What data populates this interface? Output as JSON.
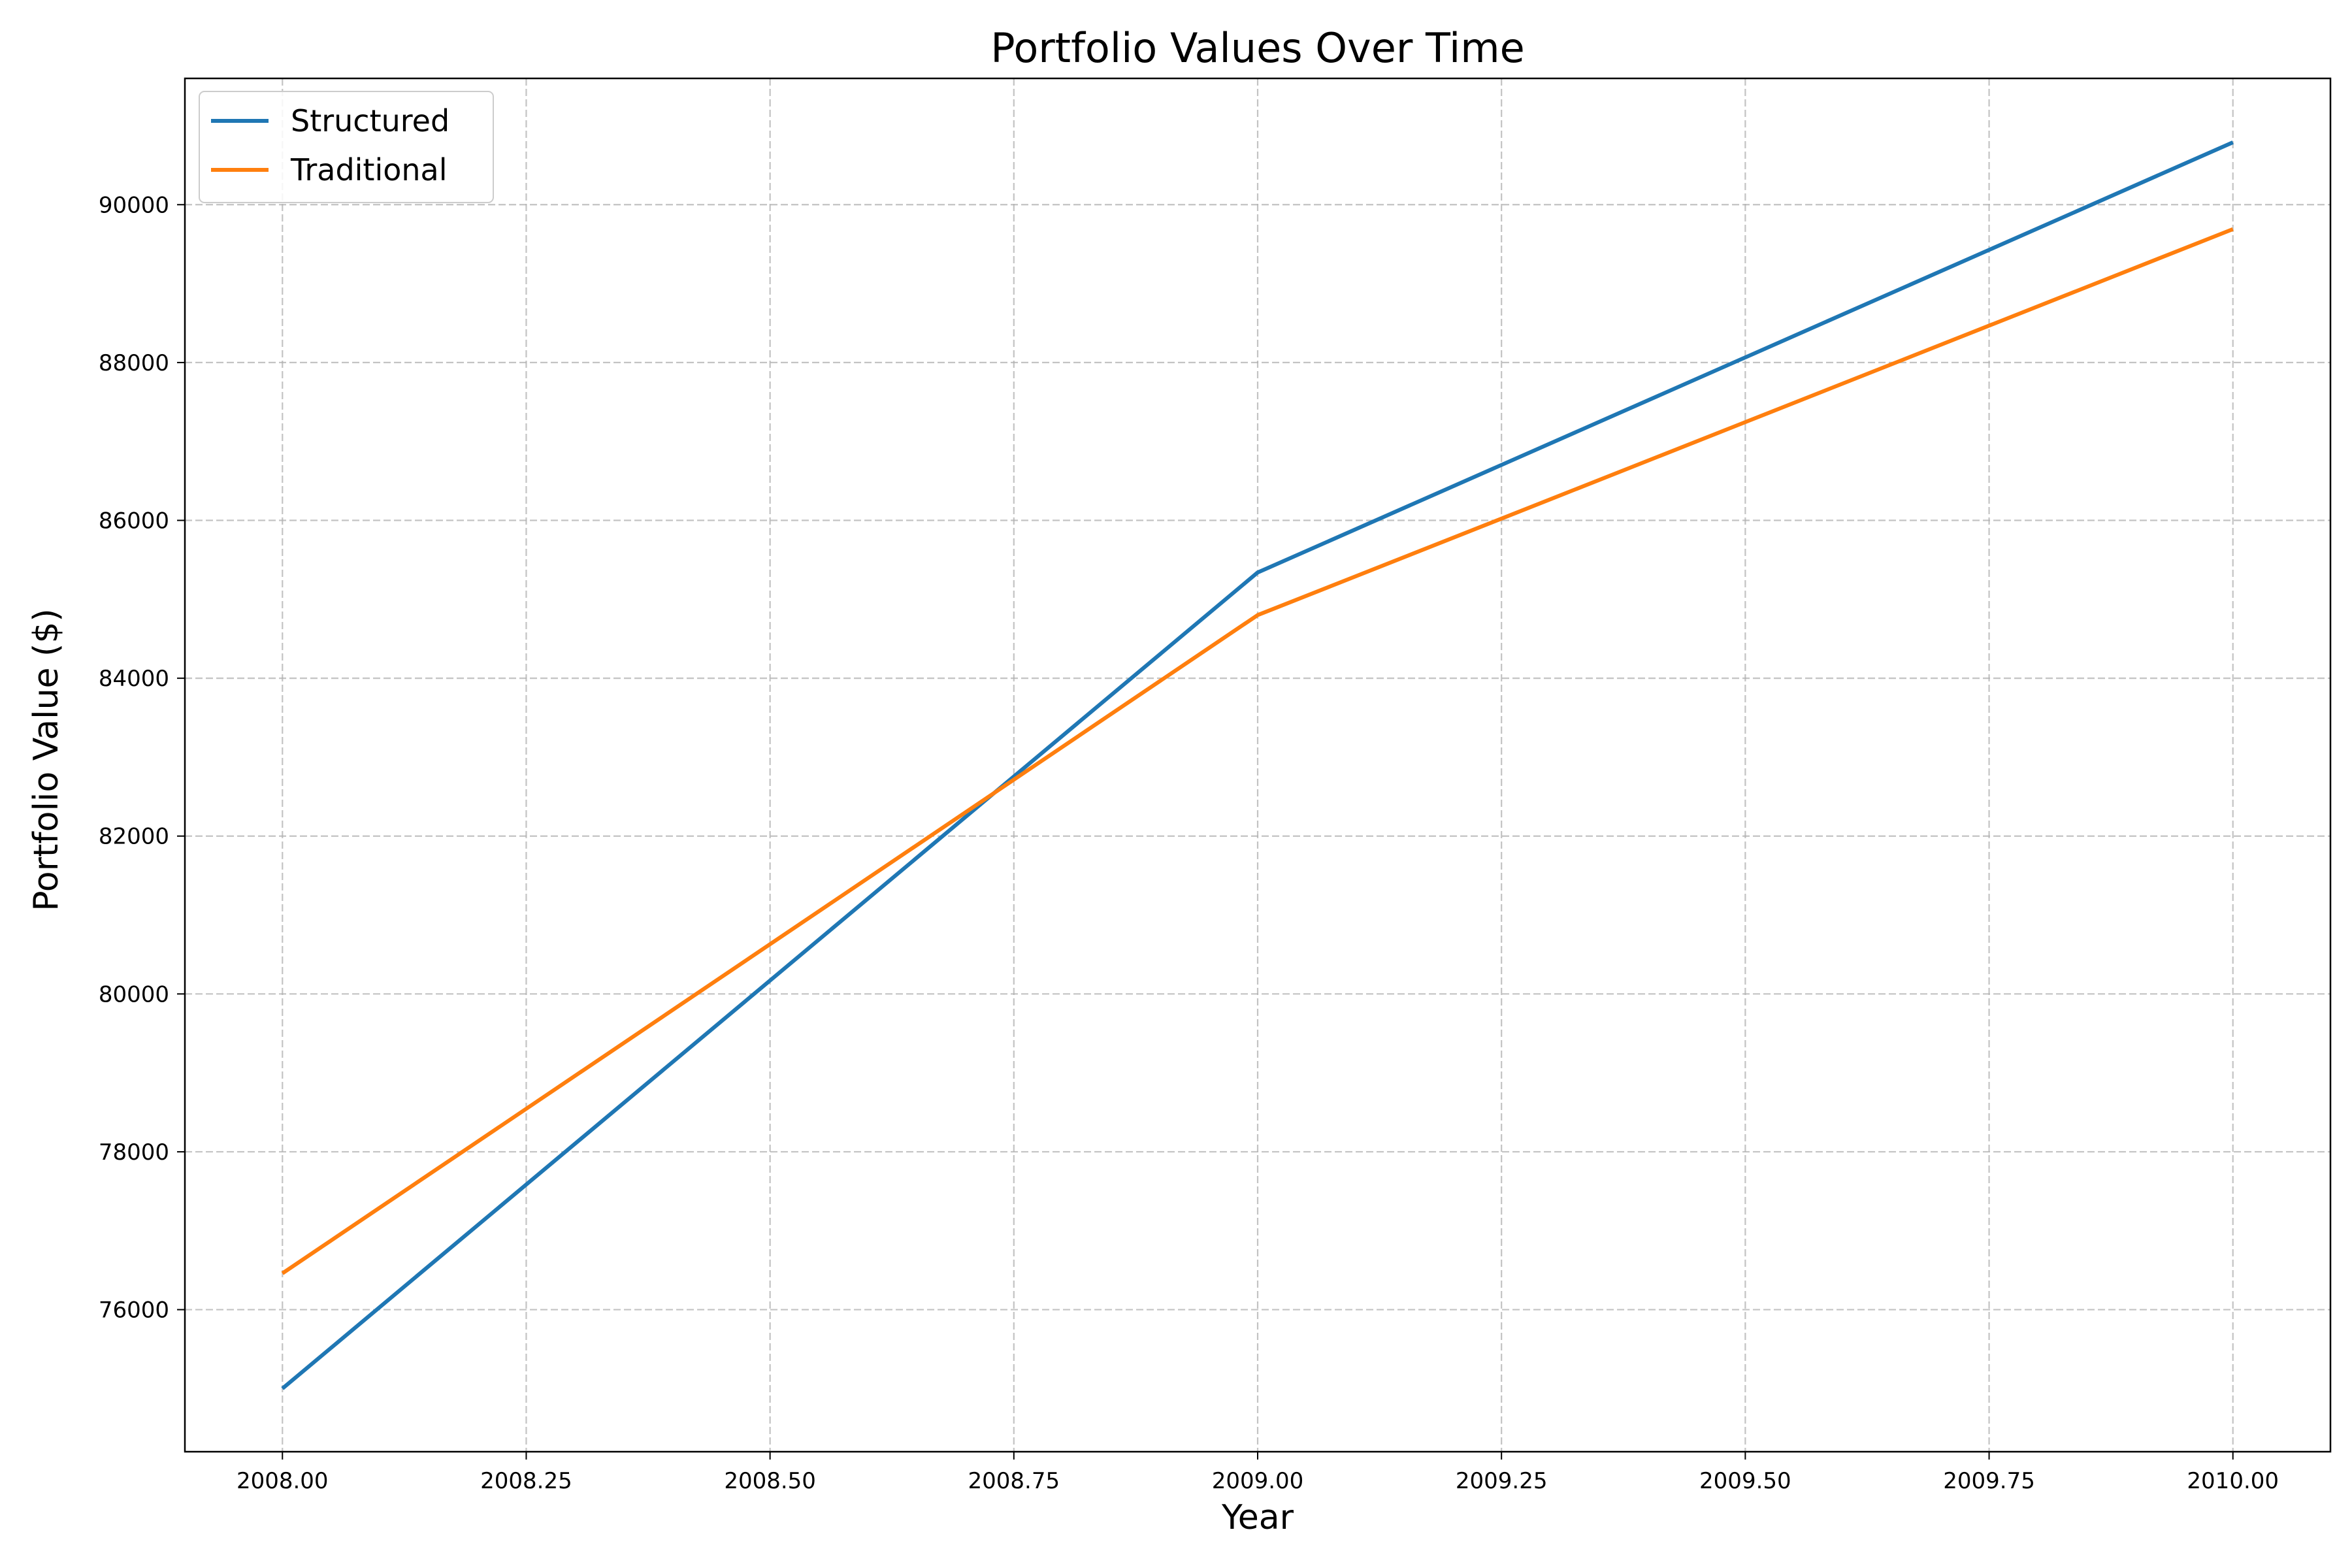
{
  "chart_data": {
    "type": "line",
    "title": "Portfolio Values Over Time",
    "xlabel": "Year",
    "ylabel": "Portfolio Value ($)",
    "xlim": [
      2007.9,
      2010.1
    ],
    "ylim": [
      74200,
      91600
    ],
    "xticks": [
      "2008.00",
      "2008.25",
      "2008.50",
      "2008.75",
      "2009.00",
      "2009.25",
      "2009.50",
      "2009.75",
      "2010.00"
    ],
    "yticks": [
      "76000",
      "78000",
      "80000",
      "82000",
      "84000",
      "86000",
      "88000",
      "90000"
    ],
    "grid": true,
    "legend_position": "upper-left",
    "series": [
      {
        "name": "Structured",
        "color": "#1f77b4",
        "x": [
          2008,
          2009,
          2010
        ],
        "y": [
          75000,
          85340,
          90790
        ]
      },
      {
        "name": "Traditional",
        "color": "#ff7f0e",
        "x": [
          2008,
          2009,
          2010
        ],
        "y": [
          76460,
          84800,
          89690
        ]
      }
    ]
  }
}
